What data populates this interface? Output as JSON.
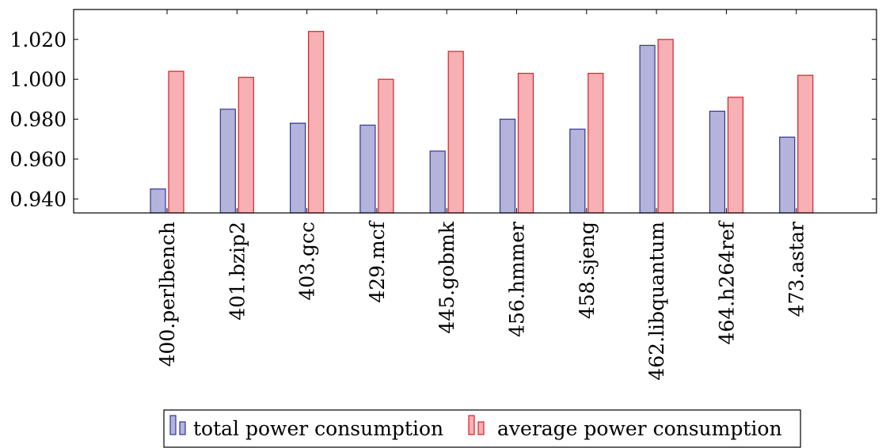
{
  "chart_data": {
    "type": "bar",
    "title": "",
    "xlabel": "",
    "ylabel": "",
    "categories": [
      "400.perlbench",
      "401.bzip2",
      "403.gcc",
      "429.mcf",
      "445.gobmk",
      "456.hmmer",
      "458.sjeng",
      "462.libquantum",
      "464.h264ref",
      "473.astar"
    ],
    "series": [
      {
        "name": "total power consumption",
        "color": "#b3b3dc",
        "stroke": "#353594",
        "values": [
          0.945,
          0.985,
          0.978,
          0.977,
          0.964,
          0.98,
          0.975,
          1.017,
          0.984,
          0.971
        ]
      },
      {
        "name": "average power consumption",
        "color": "#f7b0b3",
        "stroke": "#d9202c",
        "values": [
          1.004,
          1.001,
          1.024,
          1.0,
          1.014,
          1.003,
          1.003,
          1.02,
          0.991,
          1.002
        ]
      }
    ],
    "ylim": [
      0.933,
      1.035
    ],
    "yticks": [
      0.94,
      0.96,
      0.98,
      1.0,
      1.02
    ],
    "ytick_labels": [
      "0.940",
      "0.960",
      "0.980",
      "1.000",
      "1.020"
    ],
    "grid": false,
    "legend_position": "bottom-center"
  }
}
